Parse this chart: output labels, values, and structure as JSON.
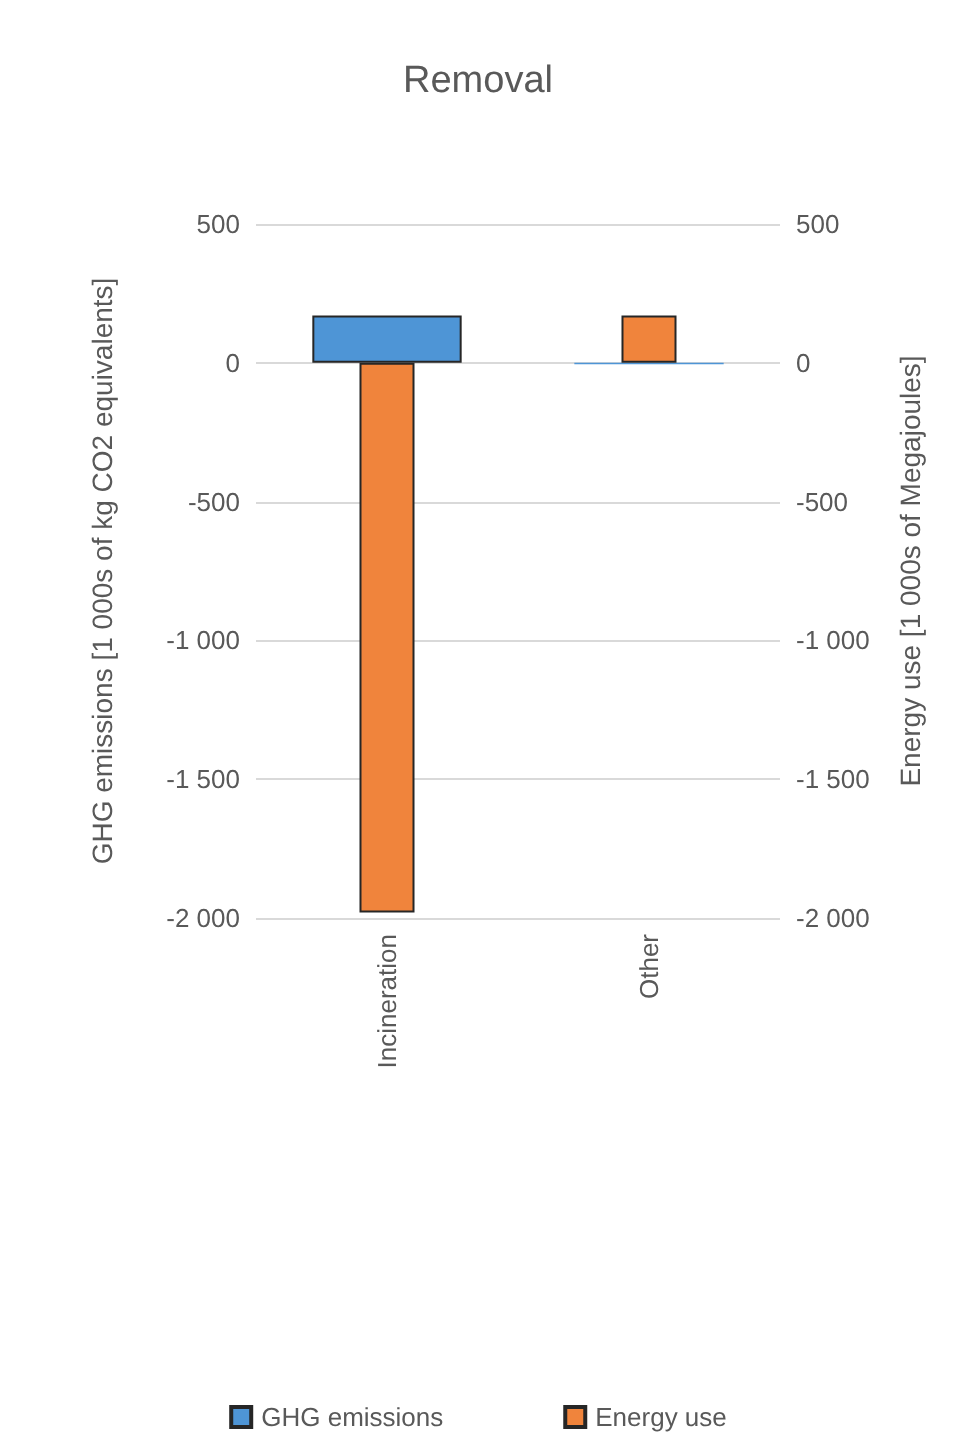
{
  "chart_data": {
    "type": "bar",
    "title": "Removal",
    "categories": [
      "Incineration",
      "Other"
    ],
    "series": [
      {
        "name": "GHG emissions",
        "color": "#4e95d6",
        "values": [
          170,
          -5
        ]
      },
      {
        "name": "Energy use",
        "color": "#f0843c",
        "values": [
          -1980,
          170
        ],
        "axis": "y2"
      }
    ],
    "ylabel": "GHG emissions [1 000s of kg CO2 equivalents]",
    "y2label": "Energy use [1 000s of Megajoules]",
    "ylim": [
      -2000,
      500
    ],
    "yticks": [
      {
        "value": -2000,
        "label": "-2 000"
      },
      {
        "value": -1500,
        "label": "-1 500"
      },
      {
        "value": -1000,
        "label": "-1 000"
      },
      -500,
      0,
      500
    ],
    "y2lim": [
      -2000,
      500
    ],
    "y2ticks": [
      {
        "value": -2000,
        "label": "-2 000"
      },
      {
        "value": -1500,
        "label": "-1 500"
      },
      {
        "value": -1000,
        "label": "-1 000"
      },
      -500,
      0,
      500
    ],
    "grid": "y",
    "legend": "bottom"
  }
}
